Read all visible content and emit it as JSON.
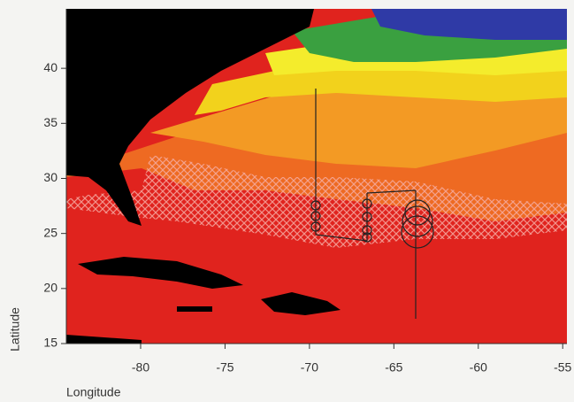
{
  "chart_data": {
    "type": "map",
    "x_label": "Longitude",
    "y_label": "Latitude",
    "xlim": [
      -84.4,
      -54.75
    ],
    "ylim": [
      15,
      45.4
    ],
    "xticks": [
      -80,
      -75,
      -70,
      -65,
      -60,
      -55
    ],
    "yticks": [
      15,
      20,
      25,
      30,
      35,
      40
    ]
  }
}
